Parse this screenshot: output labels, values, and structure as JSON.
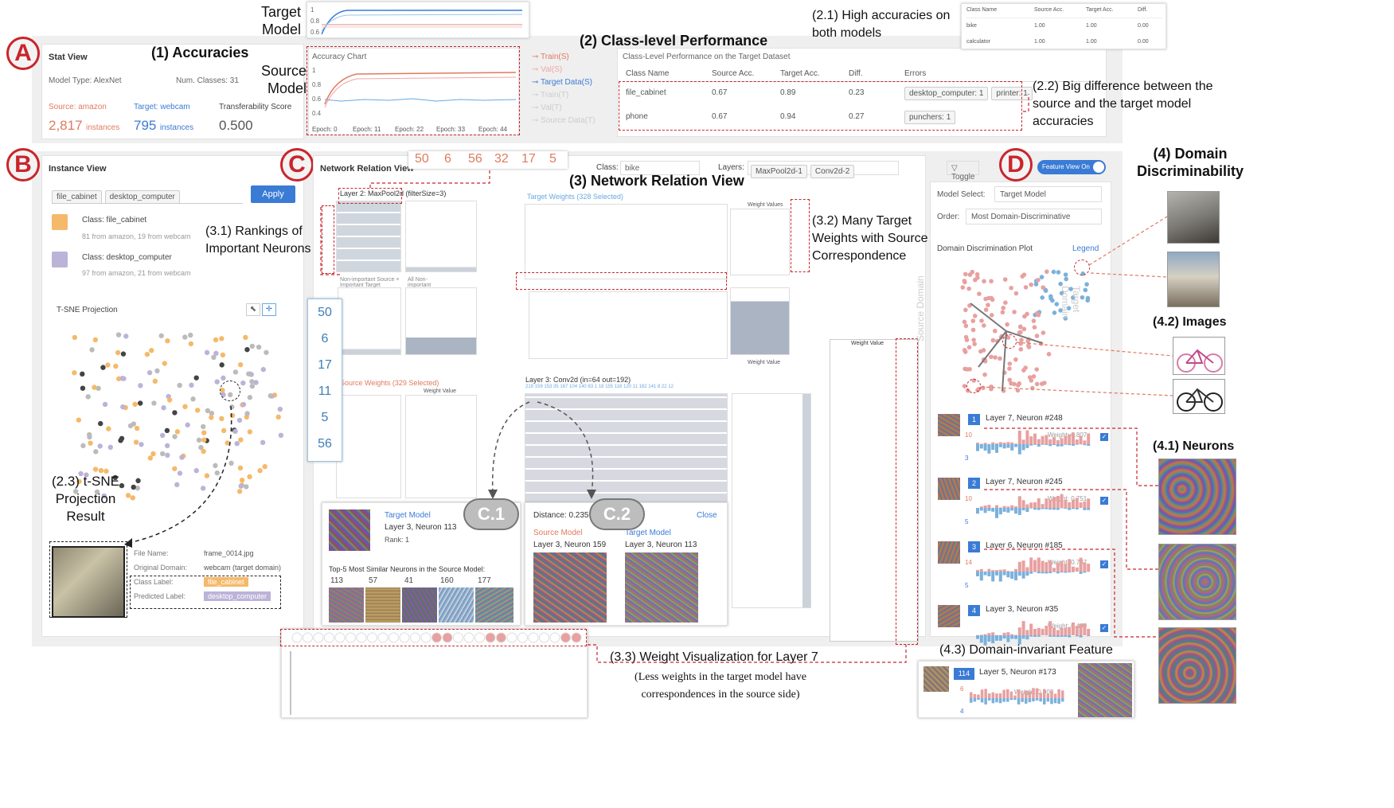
{
  "labels": {
    "A": "A",
    "B": "B",
    "C": "C",
    "D": "D",
    "C1": "C.1",
    "C2": "C.2"
  },
  "annotations": {
    "accuracies": "(1) Accuracies",
    "class_level": "(2) Class-level Performance",
    "high_acc": "(2.1) High accuracies on both models",
    "big_diff": "(2.2) Big difference between the source and the target model accuracies",
    "tsne": "(2.3) t-SNE Projection Result",
    "network": "(3) Network Relation View",
    "rankings": "(3.1) Rankings of Important Neurons",
    "target_weights": "(3.2) Many Target Weights with Source Correspondence",
    "weight_vis": "(3.3) Weight Visualization for Layer 7",
    "weight_vis_sub": "(Less weights in the target model have correspondences in the source side)",
    "domain_disc": "(4) Domain Discriminability",
    "neurons": "(4.1) Neurons",
    "images": "(4.2) Images",
    "invariant": "(4.3) Domain-invariant Feature",
    "target_model": "Target Model",
    "source_model": "Source Model"
  },
  "stat_view": {
    "title": "Stat View",
    "model_type": "Model Type: AlexNet",
    "num_classes": "Num. Classes: 31",
    "source_label": "Source: amazon",
    "target_label": "Target: webcam",
    "transfer_label": "Transferability Score",
    "source_count": "2,817",
    "target_count": "795",
    "instances": "instances",
    "instances_cap": "instances",
    "transfer_score": "0.500"
  },
  "accuracy_chart": {
    "title": "Accuracy Chart",
    "epochs": [
      "Epoch: 0",
      "Epoch: 11",
      "Epoch: 22",
      "Epoch: 33",
      "Epoch: 44"
    ],
    "y_ticks": [
      "1",
      "0.8",
      "0.6",
      "0.4"
    ],
    "legend": [
      "Train(S)",
      "Val(S)",
      "Target Data(S)",
      "Train(T)",
      "Val(T)",
      "Source Data(T)"
    ]
  },
  "mini_chart": {
    "y_ticks": [
      "1",
      "0.8",
      "0.6"
    ]
  },
  "class_perf": {
    "title": "Class-Level Performance on the Target Dataset",
    "headers": [
      "Class Name",
      "Source Acc.",
      "Target Acc.",
      "Diff.",
      "Errors"
    ],
    "rows": [
      {
        "name": "file_cabinet",
        "src": "0.67",
        "tgt": "0.89",
        "diff": "0.23",
        "errors": [
          "desktop_computer: 1",
          "printer: 1"
        ]
      },
      {
        "name": "phone",
        "src": "0.67",
        "tgt": "0.94",
        "diff": "0.27",
        "errors": [
          "punchers: 1"
        ]
      }
    ]
  },
  "popup_table": {
    "headers": [
      "Class Name",
      "Source Acc.",
      "Target Acc.",
      "Diff."
    ],
    "rows": [
      {
        "name": "bike",
        "src": "1.00",
        "tgt": "1.00",
        "diff": "0.00"
      },
      {
        "name": "calculator",
        "src": "1.00",
        "tgt": "1.00",
        "diff": "0.00"
      }
    ]
  },
  "instance_view": {
    "title": "Instance View",
    "chips": [
      "file_cabinet",
      "desktop_computer"
    ],
    "apply": "Apply",
    "classes": [
      {
        "name": "Class: file_cabinet",
        "detail": "81 from amazon, 19 from webcam",
        "color": "#f5b96a"
      },
      {
        "name": "Class: desktop_computer",
        "detail": "97 from amazon, 21 from webcam",
        "color": "#bbb3d8"
      }
    ],
    "tsne_title": "T-SNE Projection",
    "file_name_label": "File Name:",
    "file_name": "frame_0014.jpg",
    "orig_domain_label": "Original Domain:",
    "orig_domain": "webcam (target domain)",
    "class_label_label": "Class Label:",
    "class_label": "file_cabinet",
    "pred_label_label": "Predicted Label:",
    "pred_label": "desktop_computer"
  },
  "network_view": {
    "title": "Network Relation View",
    "top_ranks": [
      "50",
      "6",
      "56",
      "32",
      "17",
      "5"
    ],
    "side_ranks": [
      "50",
      "6",
      "17",
      "11",
      "5",
      "56"
    ],
    "class_label": "Class:",
    "class_value": "bike",
    "layers_label": "Layers:",
    "layers": [
      "MaxPool2d-1",
      "Conv2d-2"
    ],
    "toggle": "Toggle El",
    "layer2": "Layer 2: MaxPool2d (filterSize=3)",
    "layer3": "Layer 3: Conv2d (in=64 out=192)",
    "target_weights": "Target Weights (328 Selected)",
    "source_weights": "Source Weights (329 Selected)",
    "weight_values": "Weight Values",
    "weight_value": "Weight Value",
    "weight_value_short": "Weight Value",
    "layer3_cols": "219 159 153 35 167 104 140 83 1 18 155 116 120 11 182 141 8 22 12",
    "nonimp_src": "Non-important Source × Important Target",
    "all_nonimp": "All Non-important",
    "popup1_title": "Target Model",
    "popup1_neuron": "Layer 3, Neuron 113",
    "popup1_rank": "Rank: 1",
    "popup1_similar": "Top-5 Most Similar Neurons in the Source Model:",
    "similar_ids": [
      "113",
      "57",
      "41",
      "160",
      "177"
    ],
    "popup2_distance": "Distance: 0.235",
    "popup2_close": "Close",
    "popup2_src": "Source Model",
    "popup2_tgt": "Target Model",
    "popup2_src_neuron": "Layer 3, Neuron 159",
    "popup2_tgt_neuron": "Layer 3, Neuron 113"
  },
  "feature_view": {
    "toggle_label": "Feature View On",
    "model_select_label": "Model Select:",
    "model_select": "Target Model",
    "order_label": "Order:",
    "order": "Most Domain-Discriminative",
    "plot_title": "Domain Discrimination Plot",
    "legend": "Legend",
    "source_domain": "Source Domain",
    "target_domain": "Target Domain",
    "neurons": [
      {
        "rank": "1",
        "name": "Layer 7, Neuron #248",
        "weight": "Weight: 0.807",
        "top": "10",
        "bottom": "3"
      },
      {
        "rank": "2",
        "name": "Layer 7, Neuron #245",
        "weight": "Weight: 0.751",
        "top": "10",
        "bottom": "5"
      },
      {
        "rank": "3",
        "name": "Layer 6, Neuron #185",
        "weight": "Weight: 0.737",
        "top": "14",
        "bottom": "5"
      },
      {
        "rank": "4",
        "name": "Layer 3, Neuron #35",
        "weight": "Weight: 0.499",
        "top": "",
        "bottom": ""
      }
    ],
    "invariant": {
      "rank": "114",
      "name": "Layer 5, Neuron #173",
      "weight": "Weight: 0.003",
      "top": "6",
      "bottom": "4"
    }
  },
  "colors": {
    "red": "#c9252b",
    "blue": "#3a7bd5",
    "orange": "#f5b96a",
    "purple": "#bbb3d8",
    "pink": "#e8a0a0",
    "lightblue": "#9cc5e3"
  }
}
